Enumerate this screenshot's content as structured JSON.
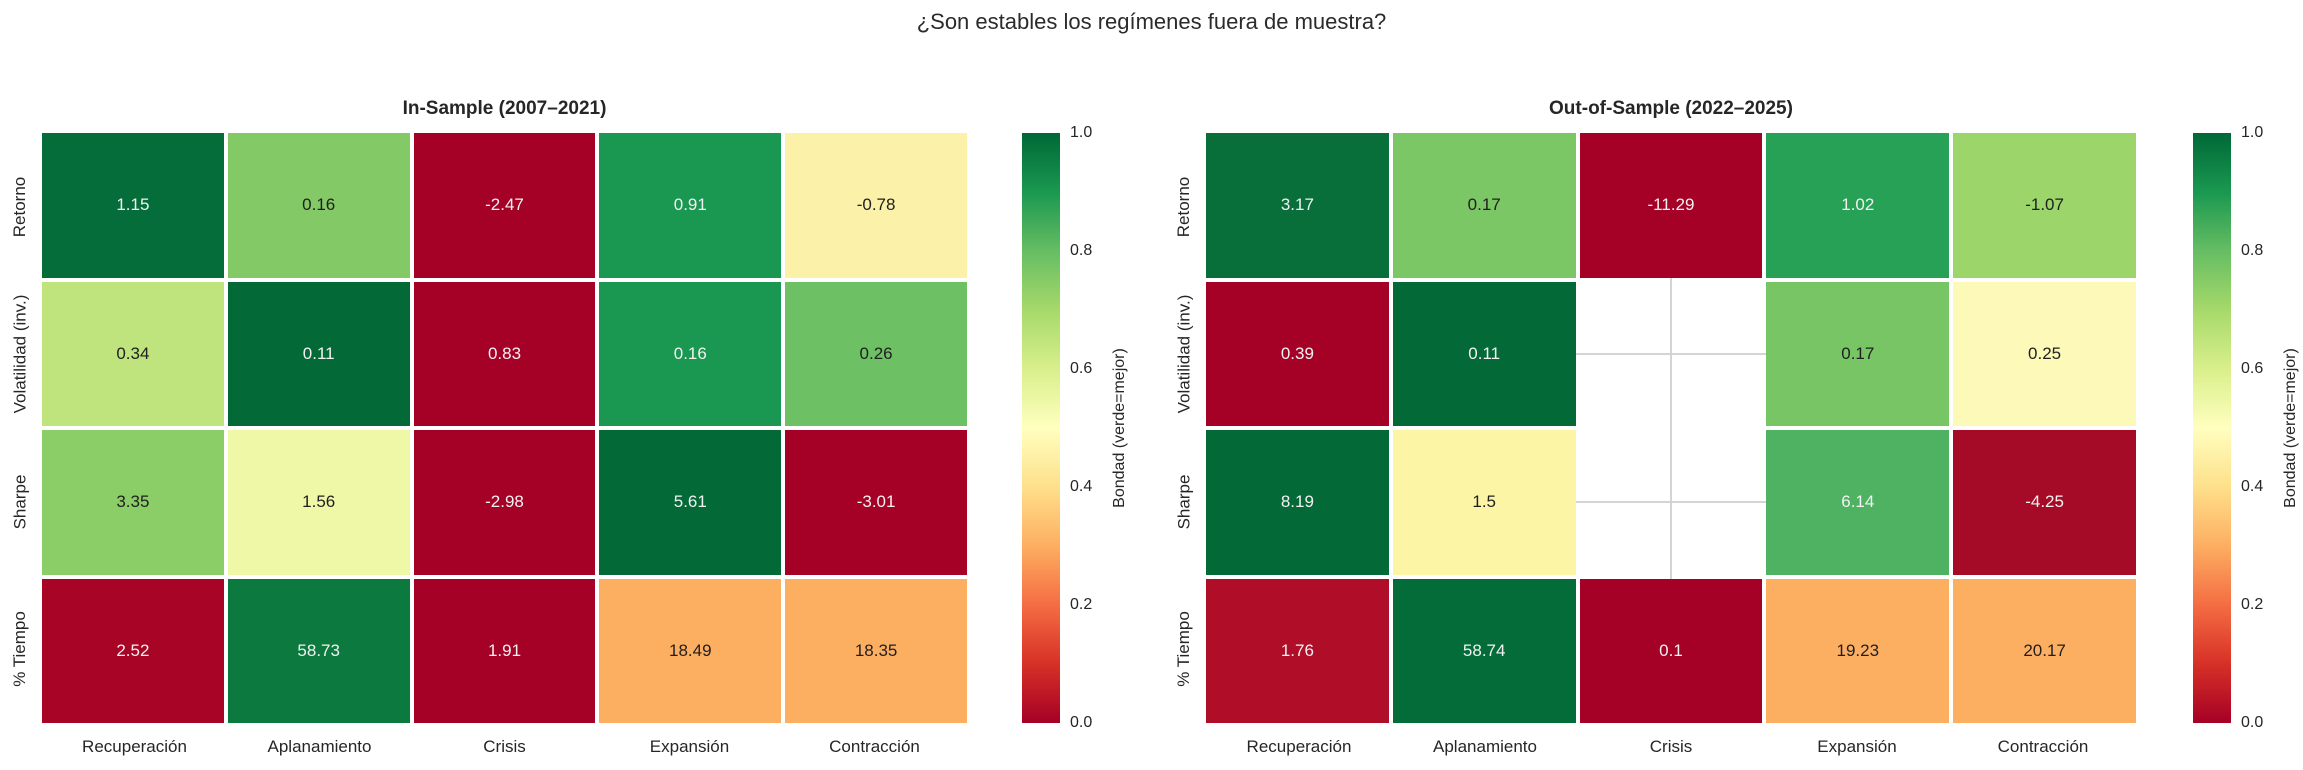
{
  "figure_title": "¿Son estables los regímenes fuera de muestra?",
  "colorbar": {
    "label": "Bondad (verde=mejor)",
    "ticks": [
      "1.0",
      "0.8",
      "0.6",
      "0.4",
      "0.2",
      "0.0"
    ],
    "range": [
      0.0,
      1.0
    ],
    "colormap_top_to_bottom": [
      "#006837",
      "#1a9850",
      "#66bd63",
      "#a6d96a",
      "#d9ef8b",
      "#ffffbf",
      "#fee08b",
      "#fdae61",
      "#f46d43",
      "#d73027",
      "#a50026"
    ]
  },
  "chart_data": [
    {
      "type": "heatmap",
      "title": "In-Sample (2007–2021)",
      "rows": [
        "Retorno",
        "Volatilidad (inv.)",
        "Sharpe",
        "% Tiempo"
      ],
      "columns": [
        "Recuperación",
        "Aplanamiento",
        "Crisis",
        "Expansión",
        "Contracción"
      ],
      "values": [
        [
          1.15,
          0.16,
          -2.47,
          0.91,
          -0.78
        ],
        [
          0.34,
          0.11,
          0.83,
          0.16,
          0.26
        ],
        [
          3.35,
          1.56,
          -2.98,
          5.61,
          -3.01
        ],
        [
          2.52,
          58.73,
          1.91,
          18.49,
          18.35
        ]
      ],
      "cell_labels": [
        [
          "1.15",
          "0.16",
          "-2.47",
          "0.91",
          "-0.78"
        ],
        [
          "0.34",
          "0.11",
          "0.83",
          "0.16",
          "0.26"
        ],
        [
          "3.35",
          "1.56",
          "-2.98",
          "5.61",
          "-3.01"
        ],
        [
          "2.52",
          "58.73",
          "1.91",
          "18.49",
          "18.35"
        ]
      ],
      "cell_colors": [
        [
          "#056d3a",
          "#83c966",
          "#a50026",
          "#1a9750",
          "#fbf1a9"
        ],
        [
          "#bfe47d",
          "#026937",
          "#a50026",
          "#1a9750",
          "#6ec064"
        ],
        [
          "#8bcd67",
          "#eff8a6",
          "#a50026",
          "#026937",
          "#a50026"
        ],
        [
          "#a70426",
          "#0c7a3f",
          "#a50026",
          "#fcae61",
          "#fcae61"
        ]
      ],
      "cell_text_colors": [
        [
          "w",
          "b",
          "w",
          "w",
          "b"
        ],
        [
          "b",
          "w",
          "w",
          "w",
          "b"
        ],
        [
          "b",
          "b",
          "w",
          "w",
          "w"
        ],
        [
          "w",
          "w",
          "w",
          "b",
          "b"
        ]
      ],
      "legend_position": "right",
      "grid": false
    },
    {
      "type": "heatmap",
      "title": "Out-of-Sample (2022–2025)",
      "rows": [
        "Retorno",
        "Volatilidad (inv.)",
        "Sharpe",
        "% Tiempo"
      ],
      "columns": [
        "Recuperación",
        "Aplanamiento",
        "Crisis",
        "Expansión",
        "Contracción"
      ],
      "values": [
        [
          3.17,
          0.17,
          -11.29,
          1.02,
          -1.07
        ],
        [
          0.39,
          0.11,
          null,
          0.17,
          0.25
        ],
        [
          8.19,
          1.5,
          null,
          6.14,
          -4.25
        ],
        [
          1.76,
          58.74,
          0.1,
          19.23,
          20.17
        ]
      ],
      "cell_labels": [
        [
          "3.17",
          "0.17",
          "-11.29",
          "1.02",
          "-1.07"
        ],
        [
          "0.39",
          "0.11",
          "",
          "0.17",
          "0.25"
        ],
        [
          "8.19",
          "1.5",
          "",
          "6.14",
          "-4.25"
        ],
        [
          "1.76",
          "58.74",
          "0.1",
          "19.23",
          "20.17"
        ]
      ],
      "cell_colors": [
        [
          "#086f3b",
          "#7cc765",
          "#a50026",
          "#26a156",
          "#9cd569"
        ],
        [
          "#a50026",
          "#026937",
          null,
          "#77c565",
          "#fdf9b8"
        ],
        [
          "#026937",
          "#fdf5a6",
          null,
          "#4fb263",
          "#a50b26"
        ],
        [
          "#b00d28",
          "#046c38",
          "#a50026",
          "#fcae61",
          "#fcae61"
        ]
      ],
      "cell_text_colors": [
        [
          "w",
          "b",
          "w",
          "w",
          "b"
        ],
        [
          "w",
          "w",
          null,
          "b",
          "b"
        ],
        [
          "w",
          "b",
          null,
          "w",
          "w"
        ],
        [
          "w",
          "w",
          "w",
          "b",
          "b"
        ]
      ],
      "legend_position": "right",
      "grid": false
    }
  ]
}
